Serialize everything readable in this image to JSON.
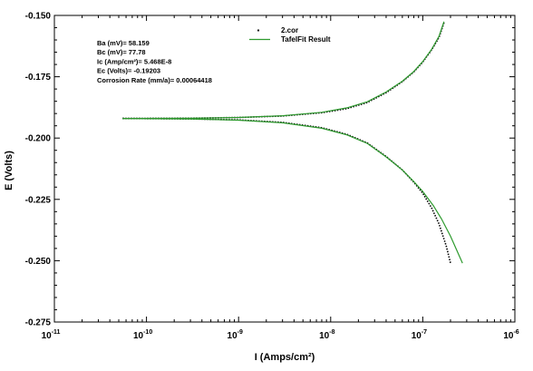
{
  "chart_data": {
    "type": "line",
    "xlabel": "I (Amps/cm²)",
    "ylabel": "E (Volts)",
    "x_scale": "log",
    "xlim": [
      1e-11,
      1e-06
    ],
    "ylim": [
      -0.275,
      -0.15
    ],
    "x_ticks": [
      {
        "value": 1e-11,
        "label_base": "10",
        "label_exp": "-11"
      },
      {
        "value": 1e-10,
        "label_base": "10",
        "label_exp": "-10"
      },
      {
        "value": 1e-09,
        "label_base": "10",
        "label_exp": "-9"
      },
      {
        "value": 1e-08,
        "label_base": "10",
        "label_exp": "-8"
      },
      {
        "value": 1e-07,
        "label_base": "10",
        "label_exp": "-7"
      },
      {
        "value": 1e-06,
        "label_base": "10",
        "label_exp": "-6"
      }
    ],
    "y_ticks": [
      {
        "value": -0.15,
        "label": "-0.150"
      },
      {
        "value": -0.175,
        "label": "-0.175"
      },
      {
        "value": -0.2,
        "label": "-0.200"
      },
      {
        "value": -0.225,
        "label": "-0.225"
      },
      {
        "value": -0.25,
        "label": "-0.250"
      },
      {
        "value": -0.275,
        "label": "-0.275"
      }
    ],
    "parameters": [
      "Ba (mV)= 58.159",
      "Bc (mV)= 77.78",
      "Ic (Amp/cm²)= 5.468E-8",
      "Ec (Volts)= -0.19203",
      "Corrosion Rate (mm/a)= 0.00064418"
    ],
    "legend": [
      {
        "label": "2.cor",
        "style": "dotted",
        "color": "#000000"
      },
      {
        "label": "TafelFit Result",
        "style": "solid",
        "color": "#2e9a2e"
      }
    ],
    "series": [
      {
        "name": "2.cor",
        "color": "#000000",
        "style": "dotted",
        "branches": [
          {
            "x": [
              5.5e-11,
              3e-10,
              1e-09,
              3e-09,
              8e-09,
              1.5e-08,
              2.5e-08,
              4e-08,
              6e-08,
              8e-08,
              1e-07,
              1.25e-07,
              1.5e-07,
              1.7e-07
            ],
            "y": [
              -0.192,
              -0.1919,
              -0.1916,
              -0.191,
              -0.1897,
              -0.188,
              -0.1855,
              -0.1815,
              -0.177,
              -0.173,
              -0.169,
              -0.164,
              -0.159,
              -0.153
            ]
          },
          {
            "x": [
              5.5e-11,
              3e-10,
              1e-09,
              3e-09,
              8e-09,
              1.5e-08,
              2.5e-08,
              4e-08,
              6e-08,
              8e-08,
              1e-07,
              1.25e-07,
              1.5e-07,
              1.8e-07,
              2e-07
            ],
            "y": [
              -0.192,
              -0.1922,
              -0.1926,
              -0.1936,
              -0.1958,
              -0.1985,
              -0.202,
              -0.2075,
              -0.213,
              -0.218,
              -0.2225,
              -0.2285,
              -0.235,
              -0.244,
              -0.251
            ]
          }
        ]
      },
      {
        "name": "TafelFit Result",
        "color": "#2e9a2e",
        "style": "solid",
        "branches": [
          {
            "x": [
              5.5e-11,
              3e-10,
              1e-09,
              3e-09,
              8e-09,
              1.5e-08,
              2.5e-08,
              4e-08,
              6e-08,
              8e-08,
              1e-07,
              1.25e-07,
              1.5e-07,
              1.7e-07
            ],
            "y": [
              -0.192,
              -0.1919,
              -0.1916,
              -0.1909,
              -0.1895,
              -0.1877,
              -0.1852,
              -0.1812,
              -0.1768,
              -0.1728,
              -0.1688,
              -0.1638,
              -0.1585,
              -0.1525
            ]
          },
          {
            "x": [
              5.5e-11,
              3e-10,
              1e-09,
              3e-09,
              8e-09,
              1.5e-08,
              2.5e-08,
              4e-08,
              6e-08,
              8e-08,
              1e-07,
              1.3e-07,
              1.6e-07,
              2e-07,
              2.7e-07
            ],
            "y": [
              -0.192,
              -0.1922,
              -0.1927,
              -0.1938,
              -0.196,
              -0.1987,
              -0.2022,
              -0.2077,
              -0.213,
              -0.2178,
              -0.2218,
              -0.2275,
              -0.233,
              -0.24,
              -0.251
            ]
          }
        ]
      }
    ]
  }
}
